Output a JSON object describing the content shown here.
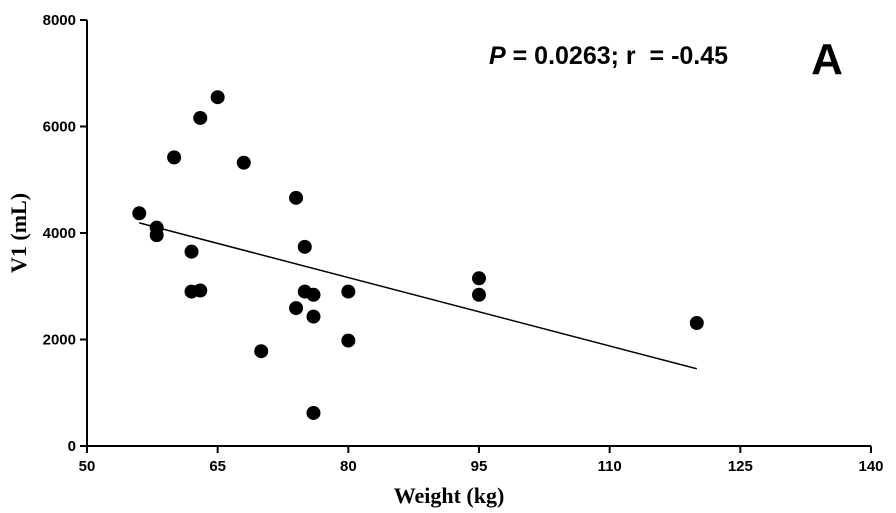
{
  "chart_data": {
    "type": "scatter",
    "xlabel": "Weight (kg)",
    "ylabel": "V1 (mL)",
    "xlim": [
      50,
      140
    ],
    "ylim": [
      0,
      8000
    ],
    "xticks": [
      50,
      65,
      80,
      95,
      110,
      125,
      140
    ],
    "yticks": [
      0,
      2000,
      4000,
      6000,
      8000
    ],
    "grid": false,
    "annotation": {
      "p_italic": "P",
      "text": " = 0.0263; r  = -0.45"
    },
    "panel_label": "A",
    "points": [
      {
        "x": 56,
        "y": 4370
      },
      {
        "x": 58,
        "y": 4100
      },
      {
        "x": 58,
        "y": 3960
      },
      {
        "x": 60,
        "y": 5420
      },
      {
        "x": 62,
        "y": 3650
      },
      {
        "x": 62,
        "y": 2900
      },
      {
        "x": 63,
        "y": 6160
      },
      {
        "x": 63,
        "y": 2920
      },
      {
        "x": 65,
        "y": 6550
      },
      {
        "x": 68,
        "y": 5320
      },
      {
        "x": 70,
        "y": 1780
      },
      {
        "x": 74,
        "y": 4660
      },
      {
        "x": 74,
        "y": 2590
      },
      {
        "x": 75,
        "y": 3740
      },
      {
        "x": 75,
        "y": 2900
      },
      {
        "x": 76,
        "y": 2840
      },
      {
        "x": 76,
        "y": 2430
      },
      {
        "x": 76,
        "y": 620
      },
      {
        "x": 80,
        "y": 2900
      },
      {
        "x": 80,
        "y": 1980
      },
      {
        "x": 95,
        "y": 3150
      },
      {
        "x": 95,
        "y": 2840
      },
      {
        "x": 120,
        "y": 2310
      }
    ],
    "fit_line": {
      "x": [
        56,
        120
      ],
      "y": [
        4190,
        1450
      ]
    }
  }
}
